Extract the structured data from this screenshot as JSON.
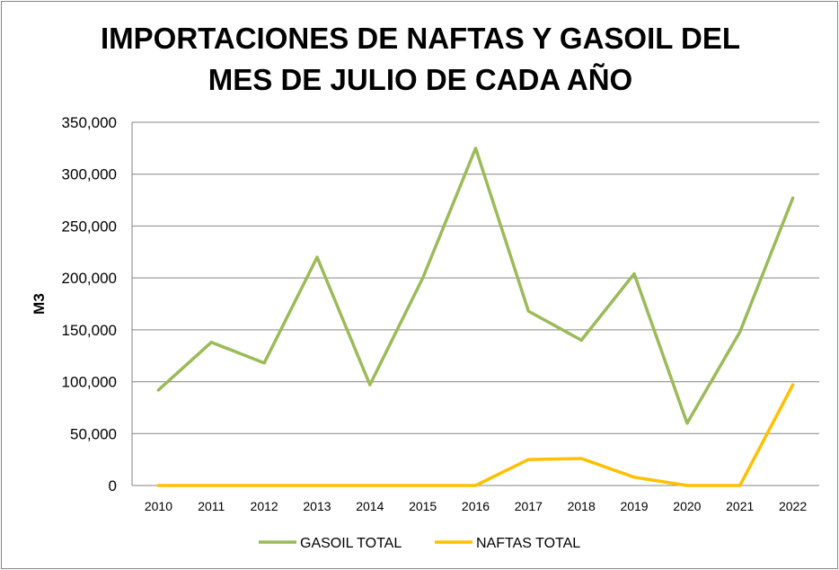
{
  "chart_data": {
    "type": "line",
    "title_lines": [
      "IMPORTACIONES DE NAFTAS Y GASOIL DEL",
      "MES DE JULIO DE CADA AÑO"
    ],
    "xlabel": "",
    "ylabel": "M3",
    "categories": [
      "2010",
      "2011",
      "2012",
      "2013",
      "2014",
      "2015",
      "2016",
      "2017",
      "2018",
      "2019",
      "2020",
      "2021",
      "2022"
    ],
    "ylim": [
      0,
      350000
    ],
    "yticks": [
      0,
      50000,
      100000,
      150000,
      200000,
      250000,
      300000,
      350000
    ],
    "ytick_labels": [
      "0",
      "50,000",
      "100,000",
      "150,000",
      "200,000",
      "250,000",
      "300,000",
      "350,000"
    ],
    "grid": true,
    "legend_position": "bottom",
    "series": [
      {
        "name": "GASOIL TOTAL",
        "color": "#9bbb59",
        "values": [
          92000,
          138000,
          118000,
          220000,
          97000,
          200000,
          325000,
          168000,
          140000,
          204000,
          60000,
          148000,
          277000
        ]
      },
      {
        "name": "NAFTAS TOTAL",
        "color": "#ffc000",
        "values": [
          0,
          0,
          0,
          0,
          0,
          0,
          0,
          25000,
          26000,
          8000,
          0,
          0,
          97000
        ]
      }
    ]
  }
}
